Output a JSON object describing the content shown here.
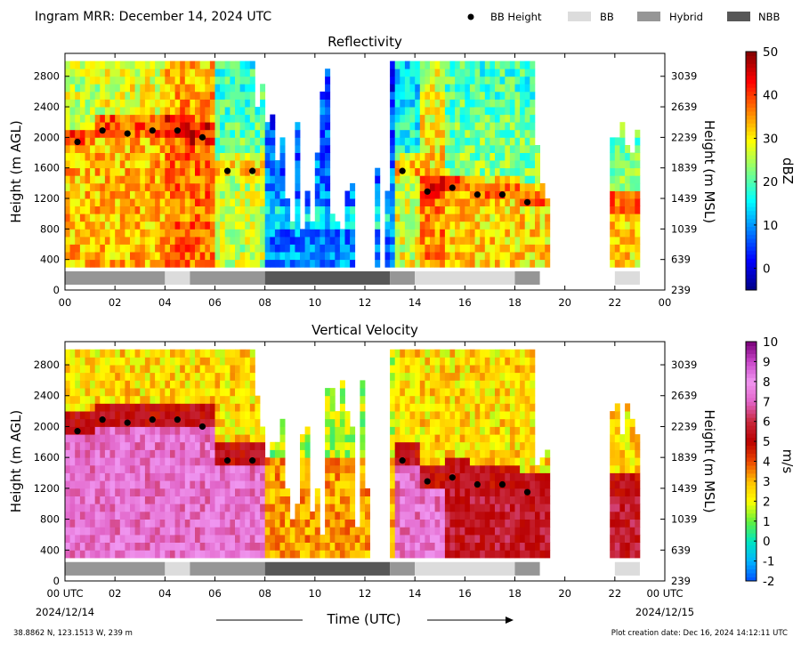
{
  "header": {
    "title": "Ingram MRR:  December 14, 2024 UTC",
    "legend": [
      {
        "label": "BB Height",
        "kind": "dot",
        "color": "#000000"
      },
      {
        "label": "BB",
        "kind": "swatch",
        "color": "#dcdcdc"
      },
      {
        "label": "Hybrid",
        "kind": "swatch",
        "color": "#969696"
      },
      {
        "label": "NBB",
        "kind": "swatch",
        "color": "#575757"
      }
    ]
  },
  "chart_data": [
    {
      "type": "heatmap",
      "title": "Reflectivity",
      "ylabel": "Height (m AGL)",
      "ylabel_right": "Height (m MSL)",
      "colorbar_label": "dBZ",
      "xlim": [
        0,
        24
      ],
      "ylim": [
        0,
        3100
      ],
      "x_ticks": [
        "00",
        "02",
        "04",
        "06",
        "08",
        "10",
        "12",
        "14",
        "16",
        "18",
        "20",
        "22",
        "00"
      ],
      "y_ticks": [
        0,
        400,
        800,
        1200,
        1600,
        2000,
        2400,
        2800
      ],
      "y_ticks_right": [
        "239",
        "639",
        "1039",
        "1439",
        "1839",
        "2239",
        "2639",
        "3039"
      ],
      "colorbar_range": [
        -5,
        50
      ],
      "colorbar_ticks": [
        "0",
        "10",
        "20",
        "30",
        "40",
        "50"
      ],
      "colorscale": "jet",
      "bb_height": {
        "hours": [
          0.5,
          1.5,
          2.5,
          3.5,
          4.5,
          5.5,
          6.5,
          7.5,
          13.5,
          14.5,
          15.5,
          16.5,
          17.5,
          18.5
        ],
        "heights": [
          1940,
          2090,
          2050,
          2090,
          2090,
          2000,
          1560,
          1560,
          1560,
          1290,
          1340,
          1250,
          1250,
          1150
        ]
      },
      "classification": [
        {
          "start": 0,
          "end": 4,
          "type": "Hybrid"
        },
        {
          "start": 4,
          "end": 5,
          "type": "BB"
        },
        {
          "start": 5,
          "end": 8,
          "type": "Hybrid"
        },
        {
          "start": 8,
          "end": 13,
          "type": "NBB"
        },
        {
          "start": 13,
          "end": 14,
          "type": "Hybrid"
        },
        {
          "start": 14,
          "end": 18,
          "type": "BB"
        },
        {
          "start": 18,
          "end": 19,
          "type": "Hybrid"
        },
        {
          "start": 22,
          "end": 23,
          "type": "BB"
        }
      ]
    },
    {
      "type": "heatmap",
      "title": "Vertical Velocity",
      "ylabel": "Height (m AGL)",
      "ylabel_right": "Height (m MSL)",
      "colorbar_label": "m/s",
      "xlim": [
        0,
        24
      ],
      "ylim": [
        0,
        3100
      ],
      "x_ticks": [
        "00 UTC",
        "02",
        "04",
        "06",
        "08",
        "10",
        "12",
        "14",
        "16",
        "18",
        "20",
        "22",
        "00 UTC"
      ],
      "y_ticks": [
        0,
        400,
        800,
        1200,
        1600,
        2000,
        2400,
        2800
      ],
      "y_ticks_right": [
        "239",
        "639",
        "1039",
        "1439",
        "1839",
        "2239",
        "2639",
        "3039"
      ],
      "colorbar_range": [
        -2,
        10
      ],
      "colorbar_ticks": [
        "-2",
        "-1",
        "0",
        "1",
        "2",
        "3",
        "4",
        "5",
        "6",
        "7",
        "8",
        "9",
        "10"
      ],
      "colorscale": "velocity",
      "bb_height": {
        "hours": [
          0.5,
          1.5,
          2.5,
          3.5,
          4.5,
          5.5,
          6.5,
          7.5,
          13.5,
          14.5,
          15.5,
          16.5,
          17.5,
          18.5
        ],
        "heights": [
          1940,
          2090,
          2050,
          2090,
          2090,
          2000,
          1560,
          1560,
          1560,
          1290,
          1340,
          1250,
          1250,
          1150
        ]
      },
      "classification": [
        {
          "start": 0,
          "end": 4,
          "type": "Hybrid"
        },
        {
          "start": 4,
          "end": 5,
          "type": "BB"
        },
        {
          "start": 5,
          "end": 8,
          "type": "Hybrid"
        },
        {
          "start": 8,
          "end": 13,
          "type": "NBB"
        },
        {
          "start": 13,
          "end": 14,
          "type": "Hybrid"
        },
        {
          "start": 14,
          "end": 18,
          "type": "BB"
        },
        {
          "start": 18,
          "end": 19,
          "type": "Hybrid"
        },
        {
          "start": 22,
          "end": 23,
          "type": "BB"
        }
      ],
      "xdates": {
        "left": "2024/12/14",
        "right": "2024/12/15"
      }
    }
  ],
  "footer": {
    "xlabel": "Time (UTC)",
    "location": "38.8862 N, 123.1513 W, 239 m",
    "creation": "Plot creation date: Dec 16, 2024 14:12:11 UTC"
  }
}
